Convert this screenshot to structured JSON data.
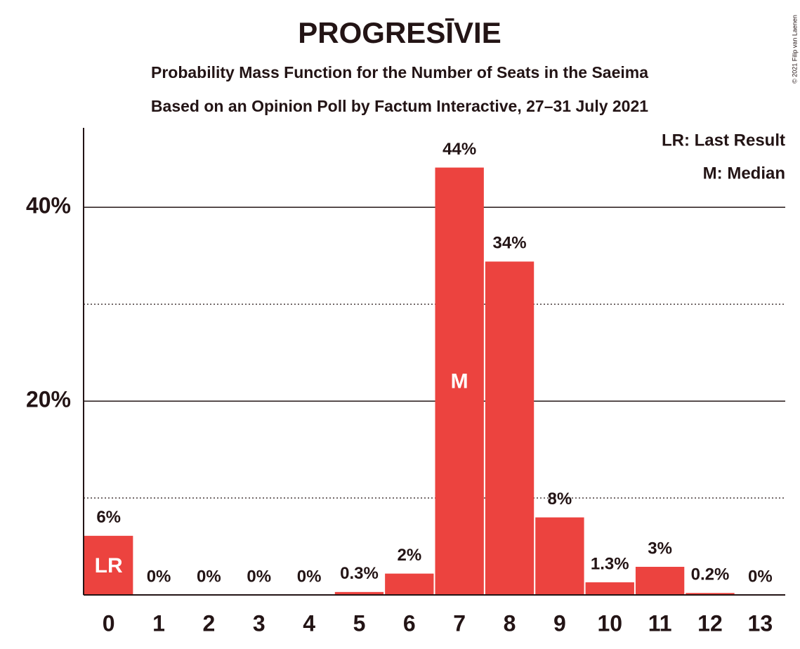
{
  "chart_data": {
    "type": "bar",
    "title": "PROGRESĪVIE",
    "subtitle": [
      "Probability Mass Function for the Number of Seats in the Saeima",
      "Based on an Opinion Poll by Factum Interactive, 27–31 July 2021"
    ],
    "copyright": "© 2021 Filip van Laenen",
    "categories": [
      "0",
      "1",
      "2",
      "3",
      "4",
      "5",
      "6",
      "7",
      "8",
      "9",
      "10",
      "11",
      "12",
      "13"
    ],
    "values": [
      6.1,
      0,
      0,
      0,
      0,
      0.3,
      2.2,
      44.1,
      34.4,
      8.0,
      1.3,
      2.9,
      0.2,
      0
    ],
    "value_labels": [
      "6%",
      "0%",
      "0%",
      "0%",
      "0%",
      "0.3%",
      "2%",
      "44%",
      "34%",
      "8%",
      "1.3%",
      "3%",
      "0.2%",
      "0%"
    ],
    "color": "#ec433f",
    "ylim": [
      0,
      48.2
    ],
    "yticks": [
      {
        "value": 20,
        "label": "20%"
      },
      {
        "value": 40,
        "label": "40%"
      }
    ],
    "minor_yticks": [
      10,
      30
    ],
    "grid": true,
    "last_result": {
      "label": "LR",
      "category": "0"
    },
    "median": {
      "label": "M",
      "category": "7"
    },
    "legend": [
      "LR: Last Result",
      "M: Median"
    ]
  }
}
